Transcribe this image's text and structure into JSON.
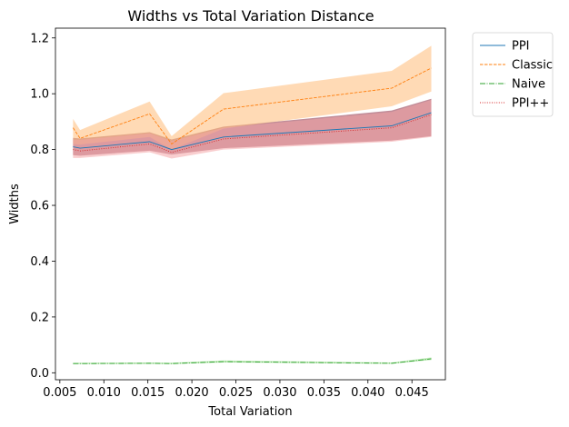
{
  "chart_data": {
    "type": "line",
    "title": "Widths vs Total Variation Distance",
    "xlabel": "Total Variation",
    "ylabel": "Widths",
    "xlim": [
      0.0045,
      0.0488
    ],
    "ylim": [
      -0.025,
      1.235
    ],
    "xticks": [
      0.005,
      0.01,
      0.015,
      0.02,
      0.025,
      0.03,
      0.035,
      0.04,
      0.045
    ],
    "xtick_labels": [
      "0.005",
      "0.010",
      "0.015",
      "0.020",
      "0.025",
      "0.030",
      "0.035",
      "0.040",
      "0.045"
    ],
    "yticks": [
      0.0,
      0.2,
      0.4,
      0.6,
      0.8,
      1.0,
      1.2
    ],
    "ytick_labels": [
      "0.0",
      "0.2",
      "0.4",
      "0.6",
      "0.8",
      "1.0",
      "1.2"
    ],
    "grid": false,
    "legend_position": "outside-top-right",
    "x": [
      0.0065,
      0.0073,
      0.0152,
      0.0177,
      0.0236,
      0.0427,
      0.0472
    ],
    "series": [
      {
        "name": "PPI",
        "color": "#1f77b4",
        "band_color": "#8c2d44",
        "linestyle": "solid",
        "values": [
          0.81,
          0.805,
          0.828,
          0.8,
          0.845,
          0.885,
          0.932
        ],
        "lower": [
          0.78,
          0.778,
          0.796,
          0.782,
          0.805,
          0.832,
          0.848
        ],
        "upper": [
          0.842,
          0.84,
          0.862,
          0.836,
          0.882,
          0.94,
          0.982
        ]
      },
      {
        "name": "Classic",
        "color": "#ff7f0e",
        "band_color": "#ffbb78",
        "linestyle": "dashed",
        "values": [
          0.878,
          0.84,
          0.928,
          0.82,
          0.945,
          1.02,
          1.092
        ],
        "lower": [
          0.82,
          0.818,
          0.845,
          0.8,
          0.875,
          0.955,
          1.008
        ],
        "upper": [
          0.91,
          0.87,
          0.972,
          0.848,
          1.002,
          1.082,
          1.172
        ]
      },
      {
        "name": "Naive",
        "color": "#2ca02c",
        "band_color": "#98df8a",
        "linestyle": "dashdot",
        "values": [
          0.033,
          0.033,
          0.034,
          0.033,
          0.04,
          0.034,
          0.05
        ],
        "lower": [
          0.031,
          0.031,
          0.032,
          0.031,
          0.037,
          0.032,
          0.046
        ],
        "upper": [
          0.036,
          0.036,
          0.037,
          0.036,
          0.044,
          0.037,
          0.055
        ]
      },
      {
        "name": "PPI++",
        "color": "#d62728",
        "band_color": "#f4a6a8",
        "linestyle": "dotted",
        "values": [
          0.8,
          0.795,
          0.82,
          0.79,
          0.838,
          0.878,
          0.925
        ],
        "lower": [
          0.77,
          0.77,
          0.79,
          0.768,
          0.8,
          0.828,
          0.845
        ],
        "upper": [
          0.835,
          0.835,
          0.858,
          0.83,
          0.878,
          0.935,
          0.978
        ]
      }
    ]
  }
}
